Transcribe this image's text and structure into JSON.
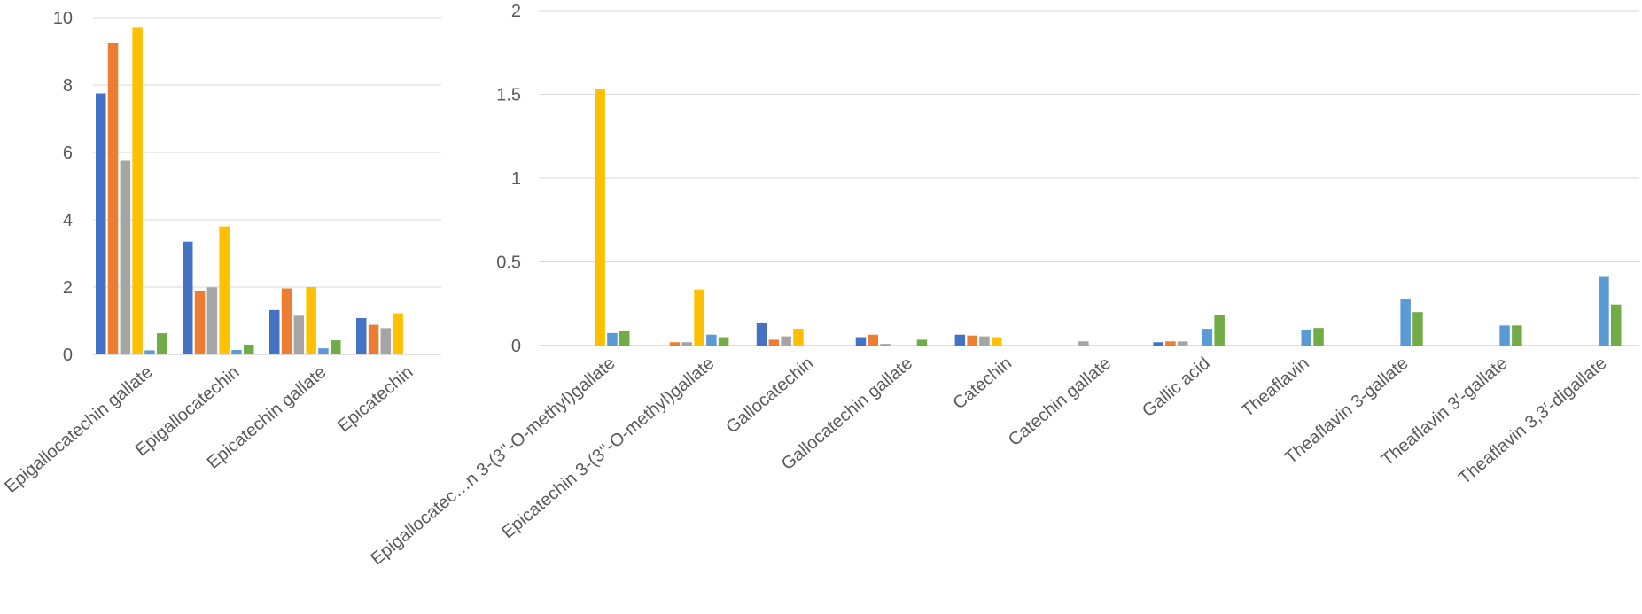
{
  "colors": {
    "series": [
      "#4472c4",
      "#ed7d31",
      "#a5a5a5",
      "#ffc000",
      "#5b9bd5",
      "#70ad47"
    ],
    "grid": "#d9d9d9",
    "text": "#595959"
  },
  "chart_data": [
    {
      "type": "bar",
      "title": "",
      "xlabel": "",
      "ylabel": "",
      "ylim": [
        0,
        10
      ],
      "yticks": [
        "0",
        "2",
        "4",
        "6",
        "8",
        "10"
      ],
      "grid": true,
      "legend": "none",
      "categories": [
        "Epigallocatechin gallate",
        "Epigallocatechin",
        "Epicatechin gallate",
        "Epicatechin"
      ],
      "series": [
        {
          "values": [
            7.75,
            3.35,
            1.32,
            1.08
          ]
        },
        {
          "values": [
            9.25,
            1.88,
            1.96,
            0.88
          ]
        },
        {
          "values": [
            5.75,
            1.99,
            1.15,
            0.78
          ]
        },
        {
          "values": [
            9.7,
            3.8,
            2.0,
            1.22
          ]
        },
        {
          "values": [
            0.12,
            0.13,
            0.18,
            null
          ]
        },
        {
          "values": [
            0.63,
            0.29,
            0.42,
            null
          ]
        }
      ]
    },
    {
      "type": "bar",
      "title": "",
      "xlabel": "",
      "ylabel": "",
      "ylim": [
        0,
        2
      ],
      "yticks": [
        "0",
        "0.5",
        "1",
        "1.5",
        "2"
      ],
      "grid": true,
      "legend": "none",
      "categories": [
        "Epigallocatec…n 3-(3''-O-methyl)gallate",
        "Epicatechin 3-(3''-O-methyl)gallate",
        "Gallocatechin",
        "Gallocatechin gallate",
        "Catechin",
        "Catechin gallate",
        "Gallic acid",
        "Theaflavin",
        "Theaflavin 3-gallate",
        "Theaflavin 3′-gallate",
        "Theaflavin 3,3′-digallate"
      ],
      "series": [
        {
          "values": [
            null,
            null,
            0.135,
            0.05,
            0.065,
            null,
            0.02,
            null,
            null,
            null,
            null
          ]
        },
        {
          "values": [
            null,
            0.02,
            0.035,
            0.065,
            0.06,
            null,
            0.025,
            null,
            null,
            null,
            null
          ]
        },
        {
          "values": [
            null,
            0.02,
            0.055,
            0.01,
            0.055,
            0.025,
            0.025,
            null,
            null,
            null,
            null
          ]
        },
        {
          "values": [
            1.53,
            0.335,
            0.1,
            null,
            0.05,
            null,
            null,
            null,
            null,
            null,
            null
          ]
        },
        {
          "values": [
            0.075,
            0.065,
            null,
            null,
            null,
            null,
            0.1,
            0.09,
            0.28,
            0.12,
            0.41
          ]
        },
        {
          "values": [
            0.085,
            0.05,
            null,
            0.035,
            null,
            null,
            0.18,
            0.105,
            0.2,
            0.12,
            0.245
          ]
        }
      ]
    }
  ]
}
